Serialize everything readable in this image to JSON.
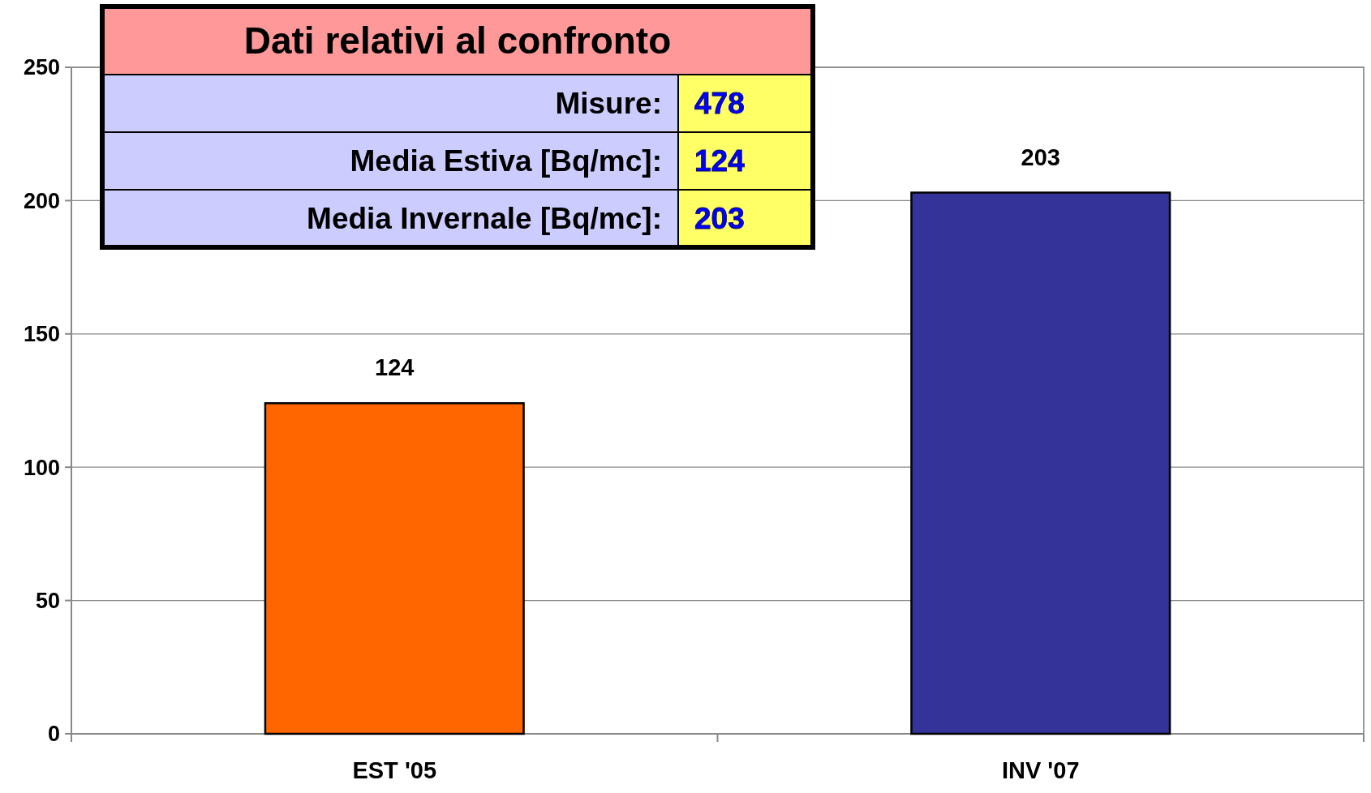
{
  "chart_data": {
    "type": "bar",
    "categories": [
      "EST '05",
      "INV '07"
    ],
    "values": [
      124,
      203
    ],
    "colors": [
      "#ff6600",
      "#333399"
    ],
    "ylim": [
      0,
      250
    ],
    "yticks": [
      0,
      50,
      100,
      150,
      200,
      250
    ],
    "grid": "y",
    "data_labels": true,
    "annotations": [
      "Dati relativi al confronto",
      "Misure:",
      "478",
      "Media Estiva [Bq/mc]:",
      "124",
      "Media Invernale [Bq/mc]:",
      "203"
    ]
  }
}
